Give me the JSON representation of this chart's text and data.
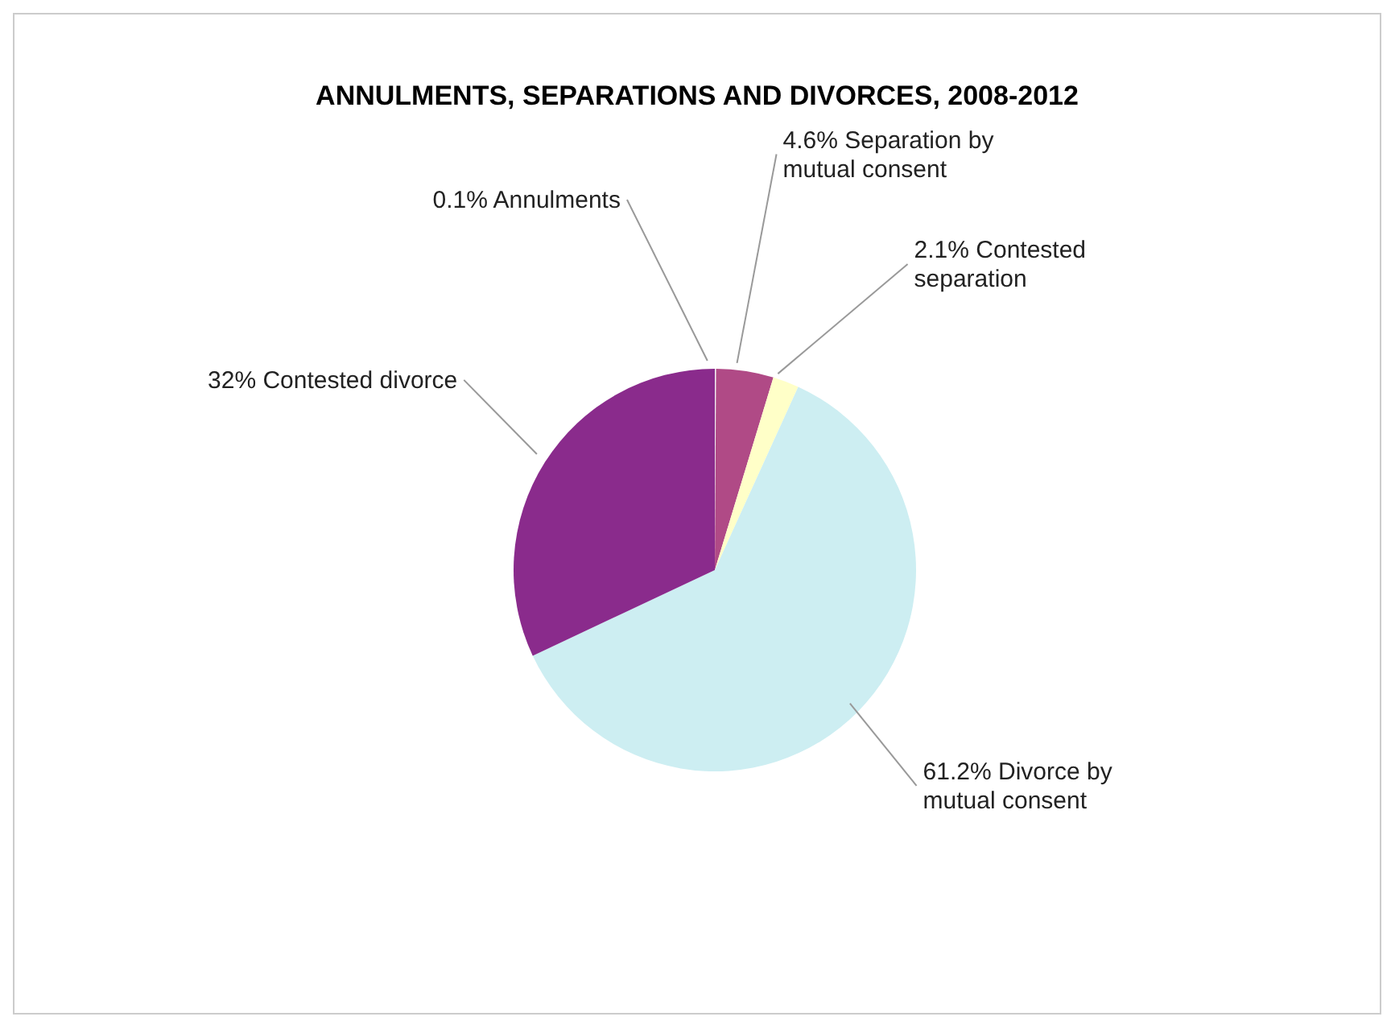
{
  "chart_data": {
    "type": "pie",
    "title": "ANNULMENTS, SEPARATIONS AND DIVORCES, 2008-2012",
    "categories": [
      "Annulments",
      "Separation by mutual  consent",
      "Contested separation",
      "Divorce by mutual consent",
      "Contested divorce"
    ],
    "values": [
      0.1,
      4.6,
      2.1,
      61.2,
      32
    ],
    "value_labels": [
      "0.1%",
      "4.6%",
      "2.1%",
      "61.2%",
      "32%"
    ],
    "colors": [
      "#f2f2f2",
      "#b04a86",
      "#ffffc8",
      "#cdeef2",
      "#8a2b8c"
    ]
  }
}
